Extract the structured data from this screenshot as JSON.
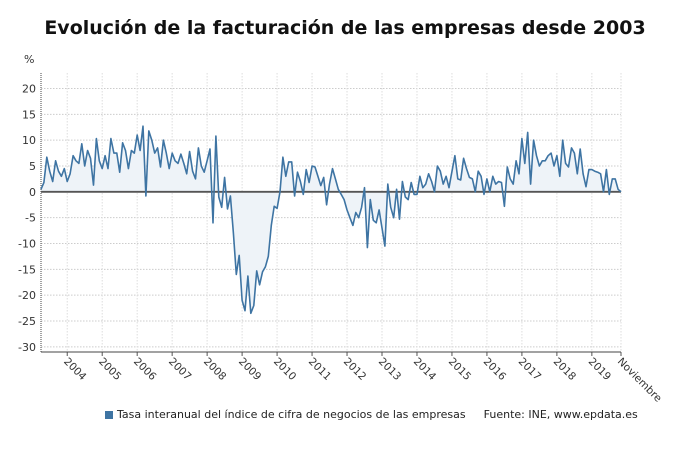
{
  "chart_data": {
    "type": "area",
    "title": "Evolución de la facturación de las empresas desde 2003",
    "ylabel": "%",
    "xlabel": "",
    "ylim": [
      -31,
      23
    ],
    "yticks": [
      20,
      15,
      10,
      5,
      0,
      -5,
      -10,
      -15,
      -20,
      -25,
      -30
    ],
    "grid": true,
    "legend_position": "bottom",
    "line_color": "#3e74a3",
    "fill_color": "#eef3f8",
    "x_tick_labels": [
      "2004",
      "2005",
      "2006",
      "2007",
      "2008",
      "2009",
      "2010",
      "2011",
      "2012",
      "2013",
      "2014",
      "2015",
      "2016",
      "2017",
      "2018",
      "2019",
      "Noviembre"
    ],
    "series": [
      {
        "name": "Tasa interanual del índice de cifra de negocios de las empresas",
        "values_by_year": [
          {
            "year": "2003",
            "values": [
              0.5,
              1.8,
              6.7,
              4,
              2,
              6,
              4,
              3,
              4.5
            ]
          },
          {
            "year": "2004",
            "values": [
              2,
              3.5,
              7,
              6,
              5.5,
              9.3,
              5,
              8,
              6.5,
              1.3,
              10.3,
              6
            ]
          },
          {
            "year": "2005",
            "values": [
              4.5,
              7,
              4.5,
              10.3,
              7.5,
              7.5,
              3.8,
              9.5,
              8,
              4.5,
              8,
              7.5
            ]
          },
          {
            "year": "2006",
            "values": [
              11,
              8,
              12.7,
              -0.8,
              11.8,
              10,
              7.5,
              8.5,
              4.8,
              10,
              7.5,
              4.5
            ]
          },
          {
            "year": "2007",
            "values": [
              7.5,
              6,
              5.5,
              7.3,
              5.5,
              3.5,
              7.8,
              4,
              2.5,
              8.5,
              5,
              3.8
            ]
          },
          {
            "year": "2008",
            "values": [
              6,
              8.3,
              -6,
              10.8,
              -1,
              -3,
              2.8,
              -3.3,
              -0.8,
              -8,
              -16,
              -12.3
            ]
          },
          {
            "year": "2009",
            "values": [
              -21,
              -23,
              -16.3,
              -23.5,
              -22,
              -15.3,
              -18,
              -15.5,
              -14.5,
              -12.5,
              -6.5,
              -2.8
            ]
          },
          {
            "year": "2010",
            "values": [
              -3.2,
              0,
              6.7,
              3,
              5.8,
              5.8,
              -0.8,
              3.8,
              2,
              -0.5,
              4.3,
              1.8
            ]
          },
          {
            "year": "2011",
            "values": [
              5,
              4.8,
              3,
              1.2,
              2.8,
              -2.5,
              1.5,
              4.5,
              2.5,
              0.5,
              -0.5,
              -1.5
            ]
          },
          {
            "year": "2012",
            "values": [
              -3.5,
              -5,
              -6.5,
              -4,
              -5,
              -3,
              0.8,
              -10.8,
              -1.5,
              -5.5,
              -6,
              -3.5
            ]
          },
          {
            "year": "2013",
            "values": [
              -7,
              -10.5,
              1.5,
              -3,
              -5,
              0.5,
              -5.3,
              2,
              -1,
              -1.5,
              1.8,
              -0.5
            ]
          },
          {
            "year": "2014",
            "values": [
              -0.5,
              3,
              0.8,
              1.5,
              3.5,
              2,
              0,
              5,
              4,
              1.5,
              3,
              0.8
            ]
          },
          {
            "year": "2015",
            "values": [
              4,
              7,
              2.5,
              2.3,
              6.5,
              4.5,
              2.8,
              2.5,
              0,
              4,
              3,
              -0.5
            ]
          },
          {
            "year": "2016",
            "values": [
              2.5,
              0,
              3,
              1.5,
              2,
              1.8,
              -2.8,
              4.8,
              2.5,
              1.5,
              6,
              3.5
            ]
          },
          {
            "year": "2017",
            "values": [
              10.3,
              5.5,
              11.5,
              1.5,
              10,
              7,
              5,
              6,
              6,
              7,
              7.5,
              5
            ]
          },
          {
            "year": "2018",
            "values": [
              7,
              3,
              10,
              5.5,
              4.8,
              8.5,
              7.5,
              3.5,
              8.3,
              3.5,
              1,
              4.3
            ]
          },
          {
            "year": "2019",
            "values": [
              4.3,
              4,
              3.8,
              3.5,
              0,
              4.3,
              -0.5,
              2.5,
              2.5,
              0.5,
              0
            ]
          }
        ]
      }
    ],
    "source": "Fuente: INE, www.epdata.es"
  }
}
